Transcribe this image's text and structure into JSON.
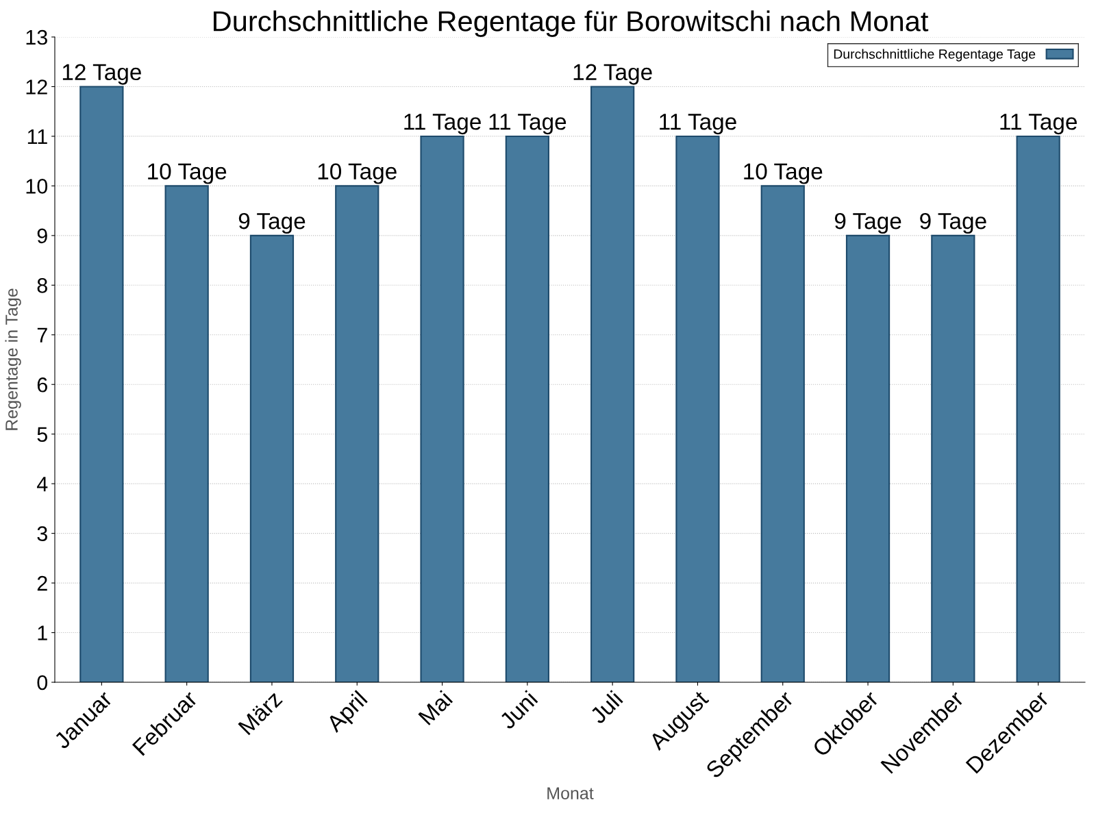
{
  "chart_data": {
    "type": "bar",
    "title": "Durchschnittliche Regentage für Borowitschi nach Monat",
    "xlabel": "Monat",
    "ylabel": "Regentage in Tage",
    "categories": [
      "Januar",
      "Februar",
      "März",
      "April",
      "Mai",
      "Juni",
      "Juli",
      "August",
      "September",
      "Oktober",
      "November",
      "Dezember"
    ],
    "series": [
      {
        "name": "Durchschnittliche Regentage Tage",
        "color": "#467a9d",
        "values": [
          12,
          10,
          9,
          10,
          11,
          11,
          12,
          11,
          10,
          9,
          9,
          11
        ],
        "value_labels": [
          "12 Tage",
          "10 Tage",
          "9 Tage",
          "10 Tage",
          "11 Tage",
          "11 Tage",
          "12 Tage",
          "11 Tage",
          "10 Tage",
          "9 Tage",
          "9 Tage",
          "11 Tage"
        ]
      }
    ],
    "ylim": [
      0,
      13
    ],
    "yticks": [
      0,
      1,
      2,
      3,
      4,
      5,
      6,
      7,
      8,
      9,
      10,
      11,
      12,
      13
    ],
    "grid": "y",
    "legend": "top right"
  }
}
